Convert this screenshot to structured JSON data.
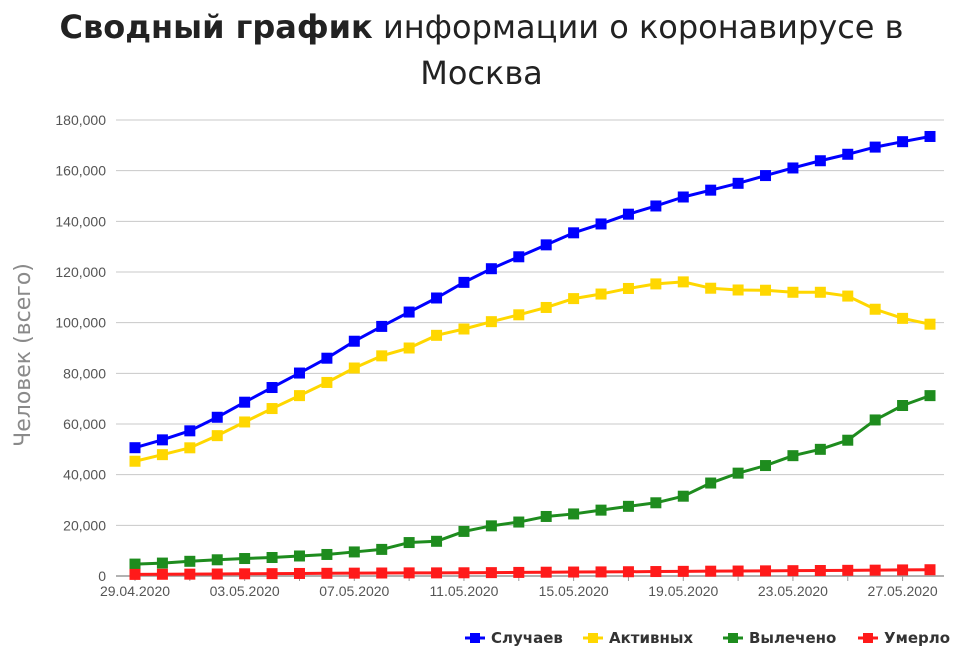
{
  "title_bold": "Сводный график",
  "title_rest": " информации о коронавирусе в",
  "title_line2": "Москва",
  "chart_data": {
    "type": "line",
    "ylabel": "Человек (всего)",
    "ylim": [
      0,
      180000
    ],
    "yticks": [
      0,
      20000,
      40000,
      60000,
      80000,
      100000,
      120000,
      140000,
      160000,
      180000
    ],
    "ytick_labels": [
      "0",
      "20,000",
      "40,000",
      "60,000",
      "80,000",
      "100,000",
      "120,000",
      "140,000",
      "160,000",
      "180,000"
    ],
    "x": [
      "29.04.2020",
      "30.04.2020",
      "01.05.2020",
      "02.05.2020",
      "03.05.2020",
      "04.05.2020",
      "05.05.2020",
      "06.05.2020",
      "07.05.2020",
      "08.05.2020",
      "09.05.2020",
      "10.05.2020",
      "11.05.2020",
      "12.05.2020",
      "13.05.2020",
      "14.05.2020",
      "15.05.2020",
      "16.05.2020",
      "17.05.2020",
      "18.05.2020",
      "19.05.2020",
      "20.05.2020",
      "21.05.2020",
      "22.05.2020",
      "23.05.2020",
      "24.05.2020",
      "25.05.2020",
      "26.05.2020",
      "27.05.2020",
      "28.05.2020"
    ],
    "xtick_labels": [
      "29.04.2020",
      "03.05.2020",
      "07.05.2020",
      "11.05.2020",
      "15.05.2020",
      "19.05.2020",
      "23.05.2020",
      "27.05.2020"
    ],
    "grid": true,
    "legend": "bottom-right",
    "series": [
      {
        "name": "Случаев",
        "color": "#0000ff",
        "values": [
          50646,
          53739,
          57300,
          62658,
          68606,
          74401,
          80115,
          85973,
          92676,
          98522,
          104189,
          109740,
          115909,
          121301,
          126004,
          130716,
          135464,
          138969,
          142824,
          146062,
          149607,
          152306,
          155008,
          158065,
          161066,
          163915,
          166473,
          169303,
          171443,
          173497
        ]
      },
      {
        "name": "Активных",
        "color": "#ffd700",
        "values": [
          45300,
          47900,
          50600,
          55400,
          60800,
          66100,
          71200,
          76400,
          82100,
          86900,
          90000,
          95000,
          97500,
          100400,
          103100,
          106000,
          109500,
          111300,
          113500,
          115300,
          116100,
          113600,
          112900,
          112800,
          112000,
          112000,
          110500,
          105300,
          101700,
          99400
        ]
      },
      {
        "name": "Вылечено",
        "color": "#1e8c1e",
        "values": [
          4700,
          5100,
          5800,
          6400,
          6900,
          7300,
          7900,
          8500,
          9500,
          10500,
          13200,
          13700,
          17600,
          19800,
          21300,
          23500,
          24500,
          26000,
          27500,
          28900,
          31500,
          36700,
          40600,
          43600,
          47500,
          50000,
          53600,
          61600,
          67300,
          71200
        ]
      },
      {
        "name": "Умерло",
        "color": "#ff1a1a",
        "values": [
          635,
          687,
          732,
          782,
          866,
          929,
          1001,
          1061,
          1124,
          1182,
          1232,
          1232,
          1272,
          1330,
          1413,
          1495,
          1563,
          1613,
          1682,
          1761,
          1832,
          1901,
          1957,
          2030,
          2102,
          2167,
          2238,
          2302,
          2400,
          2476
        ]
      }
    ]
  }
}
